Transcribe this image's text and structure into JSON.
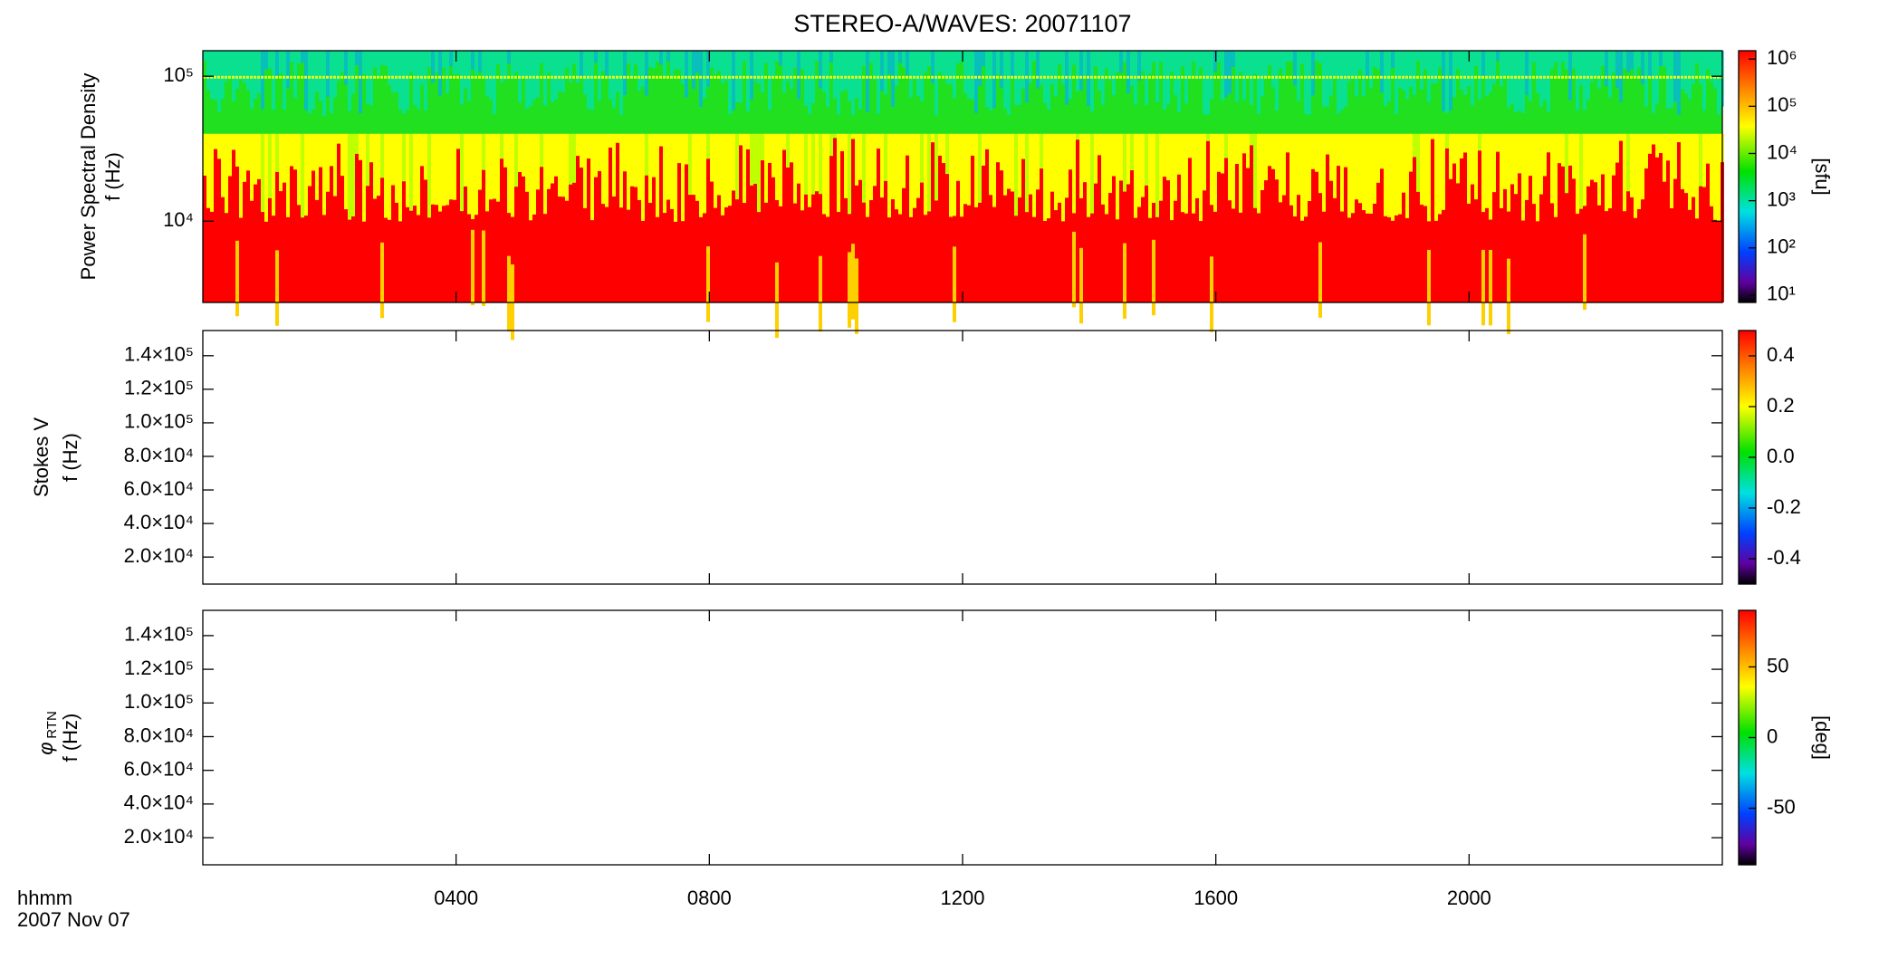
{
  "chart_data": [
    {
      "type": "heatmap",
      "title": "STEREO-A/WAVES: 20071107",
      "ylabel": "Power Spectral Density",
      "ylabel2": "f (Hz)",
      "yscale": "log",
      "ylim": [
        2750,
        150000
      ],
      "yticks": [
        {
          "value": 10000,
          "label": "10⁴"
        },
        {
          "value": 100000,
          "label": "10⁵"
        }
      ],
      "xlim": [
        0,
        24
      ],
      "xticks": [
        4,
        8,
        12,
        16,
        20
      ],
      "colorbar": {
        "scale": "log",
        "clim": [
          7,
          1500000
        ],
        "label": "[sfu]",
        "ticks": [
          {
            "value": 10,
            "label": "10¹"
          },
          {
            "value": 100,
            "label": "10²"
          },
          {
            "value": 1000,
            "label": "10³"
          },
          {
            "value": 10000,
            "label": "10⁴"
          },
          {
            "value": 100000,
            "label": "10⁵"
          },
          {
            "value": 1000000,
            "label": "10⁶"
          }
        ]
      }
    },
    {
      "type": "heatmap",
      "ylabel": "Stokes V",
      "ylabel2": "f (Hz)",
      "yscale": "linear",
      "ylim": [
        3900,
        155000
      ],
      "yticks": [
        {
          "value": 20000,
          "label": "2.0×10⁴"
        },
        {
          "value": 40000,
          "label": "4.0×10⁴"
        },
        {
          "value": 60000,
          "label": "6.0×10⁴"
        },
        {
          "value": 80000,
          "label": "8.0×10⁴"
        },
        {
          "value": 100000,
          "label": "1.0×10⁵"
        },
        {
          "value": 120000,
          "label": "1.2×10⁵"
        },
        {
          "value": 140000,
          "label": "1.4×10⁵"
        }
      ],
      "xlim": [
        0,
        24
      ],
      "xticks": [
        4,
        8,
        12,
        16,
        20
      ],
      "colorbar": {
        "scale": "linear",
        "clim": [
          -0.5,
          0.5
        ],
        "ticks": [
          {
            "value": -0.4,
            "label": "-0.4"
          },
          {
            "value": -0.2,
            "label": "-0.2"
          },
          {
            "value": 0,
            "label": "0.0"
          },
          {
            "value": 0.2,
            "label": "0.2"
          },
          {
            "value": 0.4,
            "label": "0.4"
          }
        ]
      }
    },
    {
      "type": "heatmap",
      "ylabel_symbol": "φ",
      "ylabel_subscript": "RTN",
      "ylabel2": "f (Hz)",
      "yscale": "linear",
      "ylim": [
        3900,
        155000
      ],
      "yticks": [
        {
          "value": 20000,
          "label": "2.0×10⁴"
        },
        {
          "value": 40000,
          "label": "4.0×10⁴"
        },
        {
          "value": 60000,
          "label": "6.0×10⁴"
        },
        {
          "value": 80000,
          "label": "8.0×10⁴"
        },
        {
          "value": 100000,
          "label": "1.0×10⁵"
        },
        {
          "value": 120000,
          "label": "1.2×10⁵"
        },
        {
          "value": 140000,
          "label": "1.4×10⁵"
        }
      ],
      "xlim": [
        0,
        24
      ],
      "xlabel": "hhmm",
      "date": "2007 Nov 07",
      "xticks": [
        {
          "value": 4,
          "label": "0400"
        },
        {
          "value": 8,
          "label": "0800"
        },
        {
          "value": 12,
          "label": "1200"
        },
        {
          "value": 16,
          "label": "1600"
        },
        {
          "value": 20,
          "label": "2000"
        }
      ],
      "colorbar": {
        "scale": "linear",
        "clim": [
          -90,
          90
        ],
        "label": "[deg]",
        "ticks": [
          -50,
          0,
          50
        ]
      }
    }
  ]
}
